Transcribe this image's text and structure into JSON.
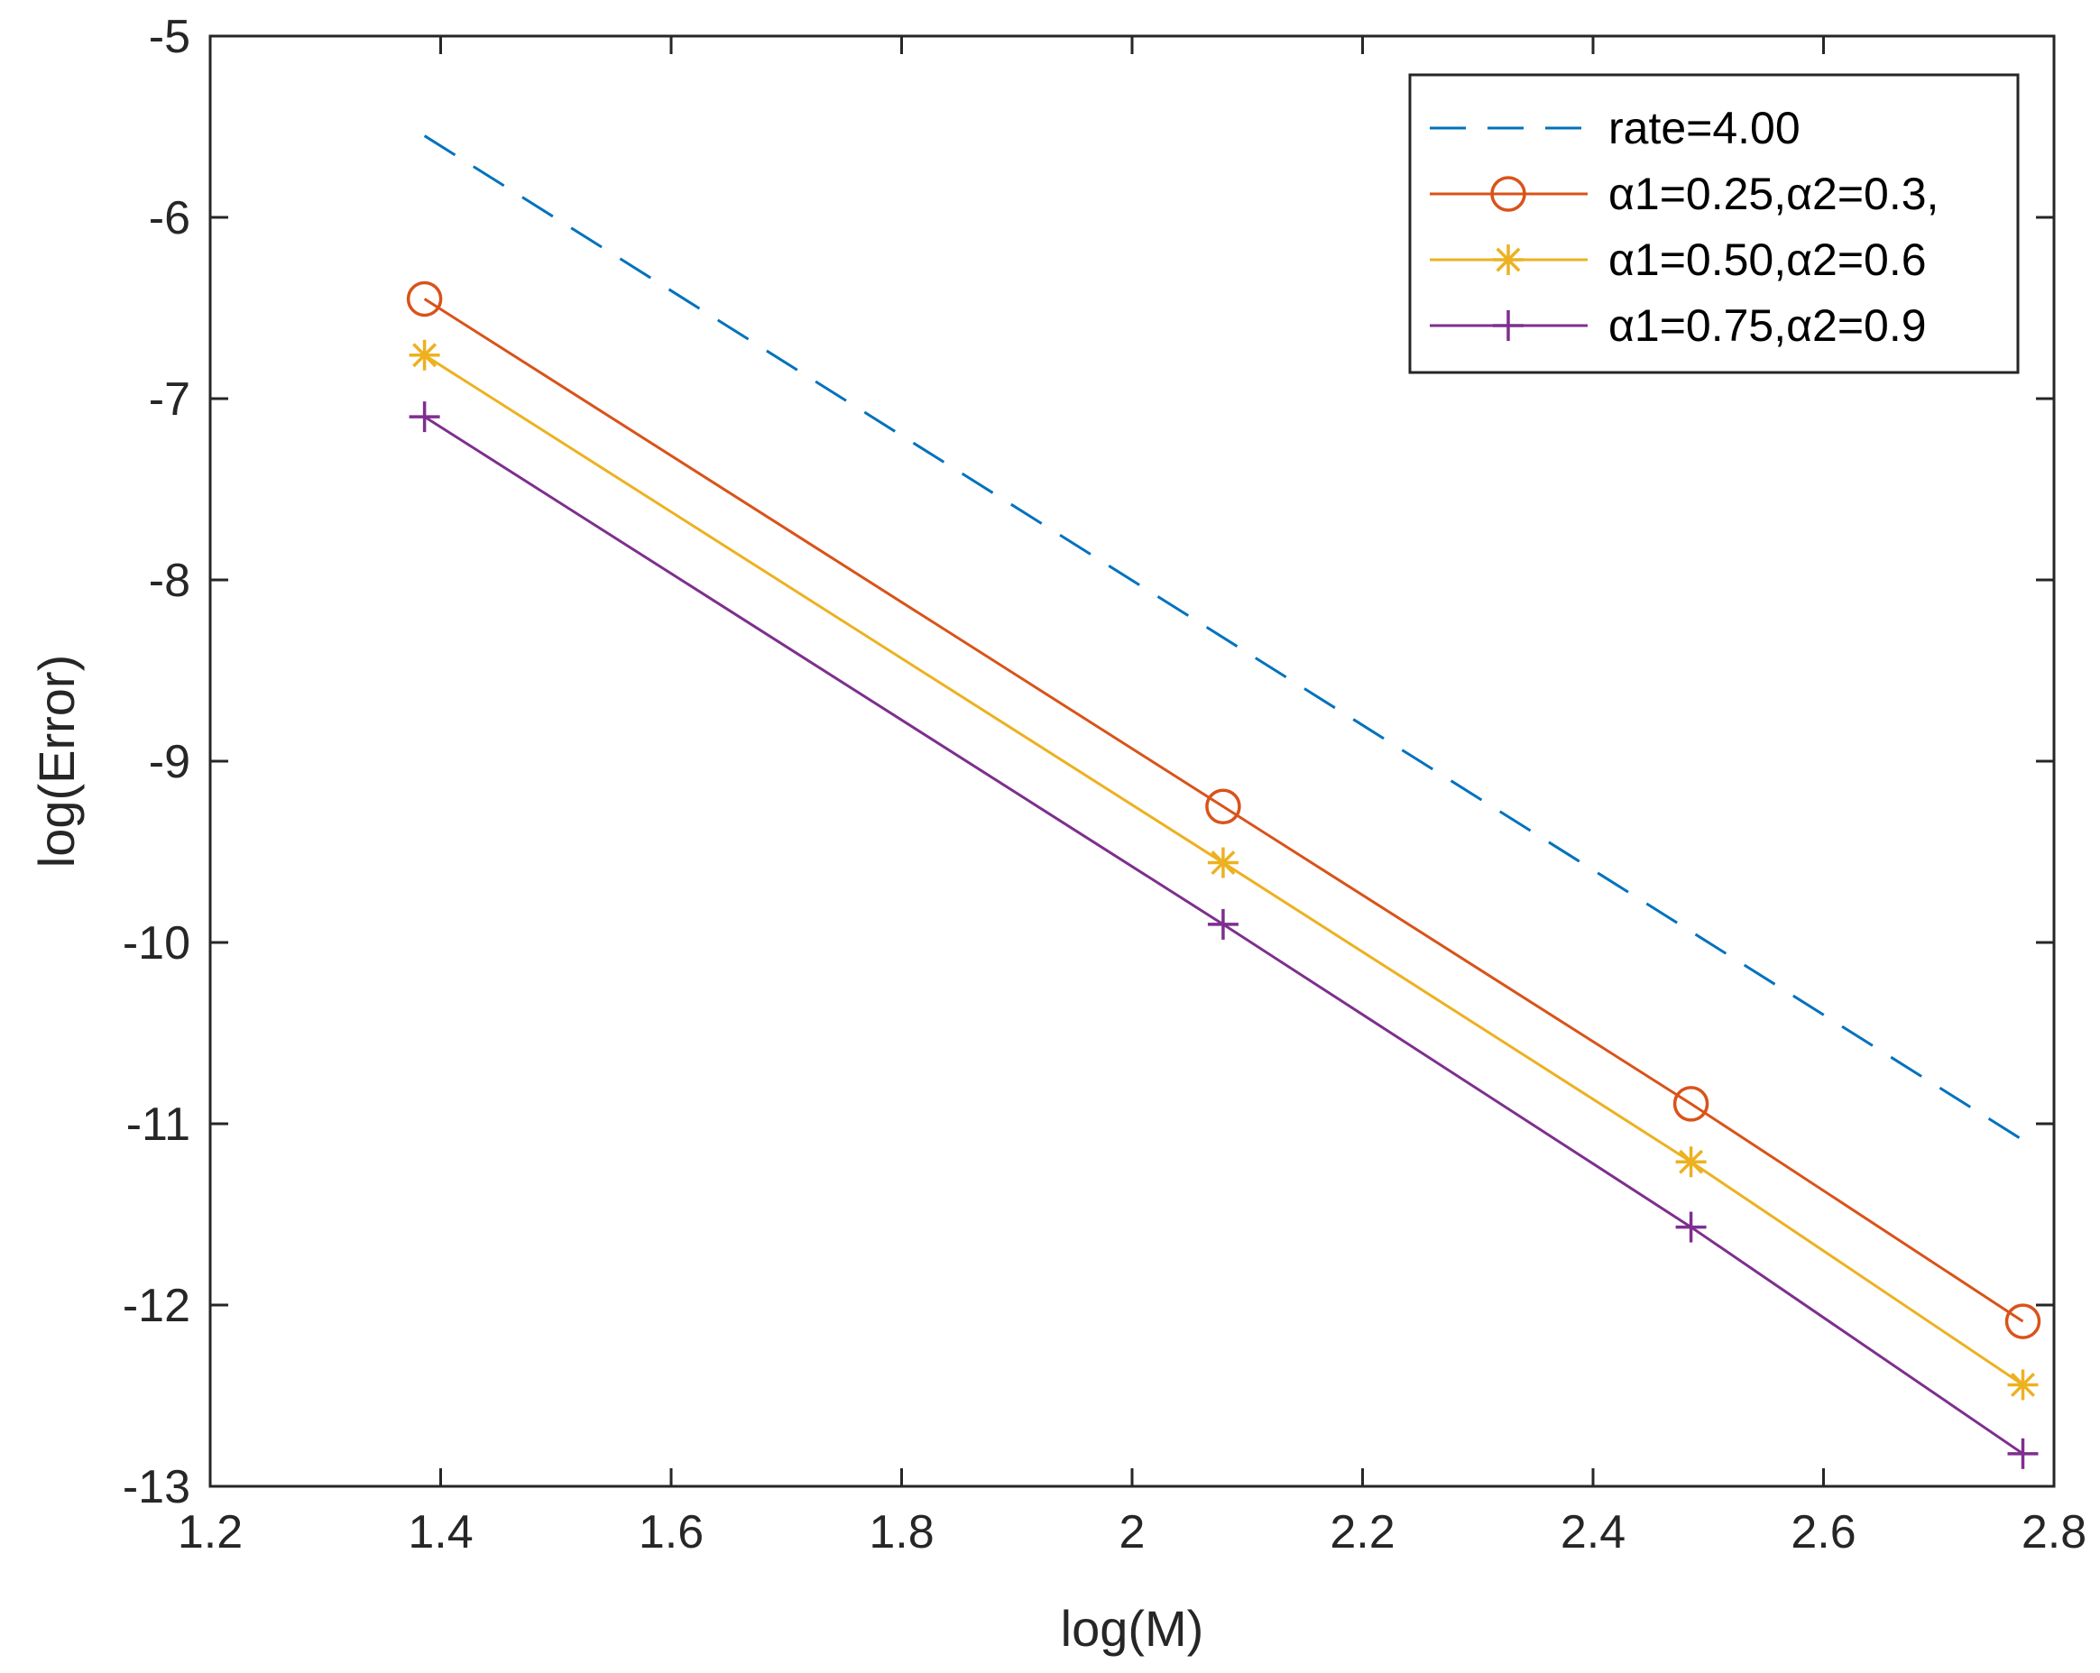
{
  "chart_data": {
    "type": "line",
    "xlabel": "log(M)",
    "ylabel": "log(Error)",
    "xlim": [
      1.2,
      2.8
    ],
    "ylim": [
      -13,
      -5
    ],
    "xticks": [
      "1.2",
      "1.4",
      "1.6",
      "1.8",
      "2",
      "2.2",
      "2.4",
      "2.6",
      "2.8"
    ],
    "yticks": [
      "-5",
      "-6",
      "-7",
      "-8",
      "-9",
      "-10",
      "-11",
      "-12",
      "-13"
    ],
    "grid": false,
    "legend_position": "top-right",
    "series": [
      {
        "name": "rate=4.00",
        "style": "dashed",
        "marker": "none",
        "color": "#0072BD",
        "x": [
          1.386,
          2.773
        ],
        "y": [
          -5.55,
          -11.09
        ]
      },
      {
        "name": "α1=0.25,α2=0.3,",
        "style": "solid",
        "marker": "circle",
        "color": "#D95319",
        "x": [
          1.386,
          2.079,
          2.485,
          2.773
        ],
        "y": [
          -6.45,
          -9.25,
          -10.89,
          -12.09
        ]
      },
      {
        "name": "α1=0.50,α2=0.6",
        "style": "solid",
        "marker": "asterisk",
        "color": "#EDB120",
        "x": [
          1.386,
          2.079,
          2.485,
          2.773
        ],
        "y": [
          -6.76,
          -9.56,
          -11.21,
          -12.44
        ]
      },
      {
        "name": "α1=0.75,α2=0.9",
        "style": "solid",
        "marker": "plus",
        "color": "#7E2F8E",
        "x": [
          1.386,
          2.079,
          2.485,
          2.773
        ],
        "y": [
          -7.1,
          -9.9,
          -11.57,
          -12.82
        ]
      }
    ]
  }
}
